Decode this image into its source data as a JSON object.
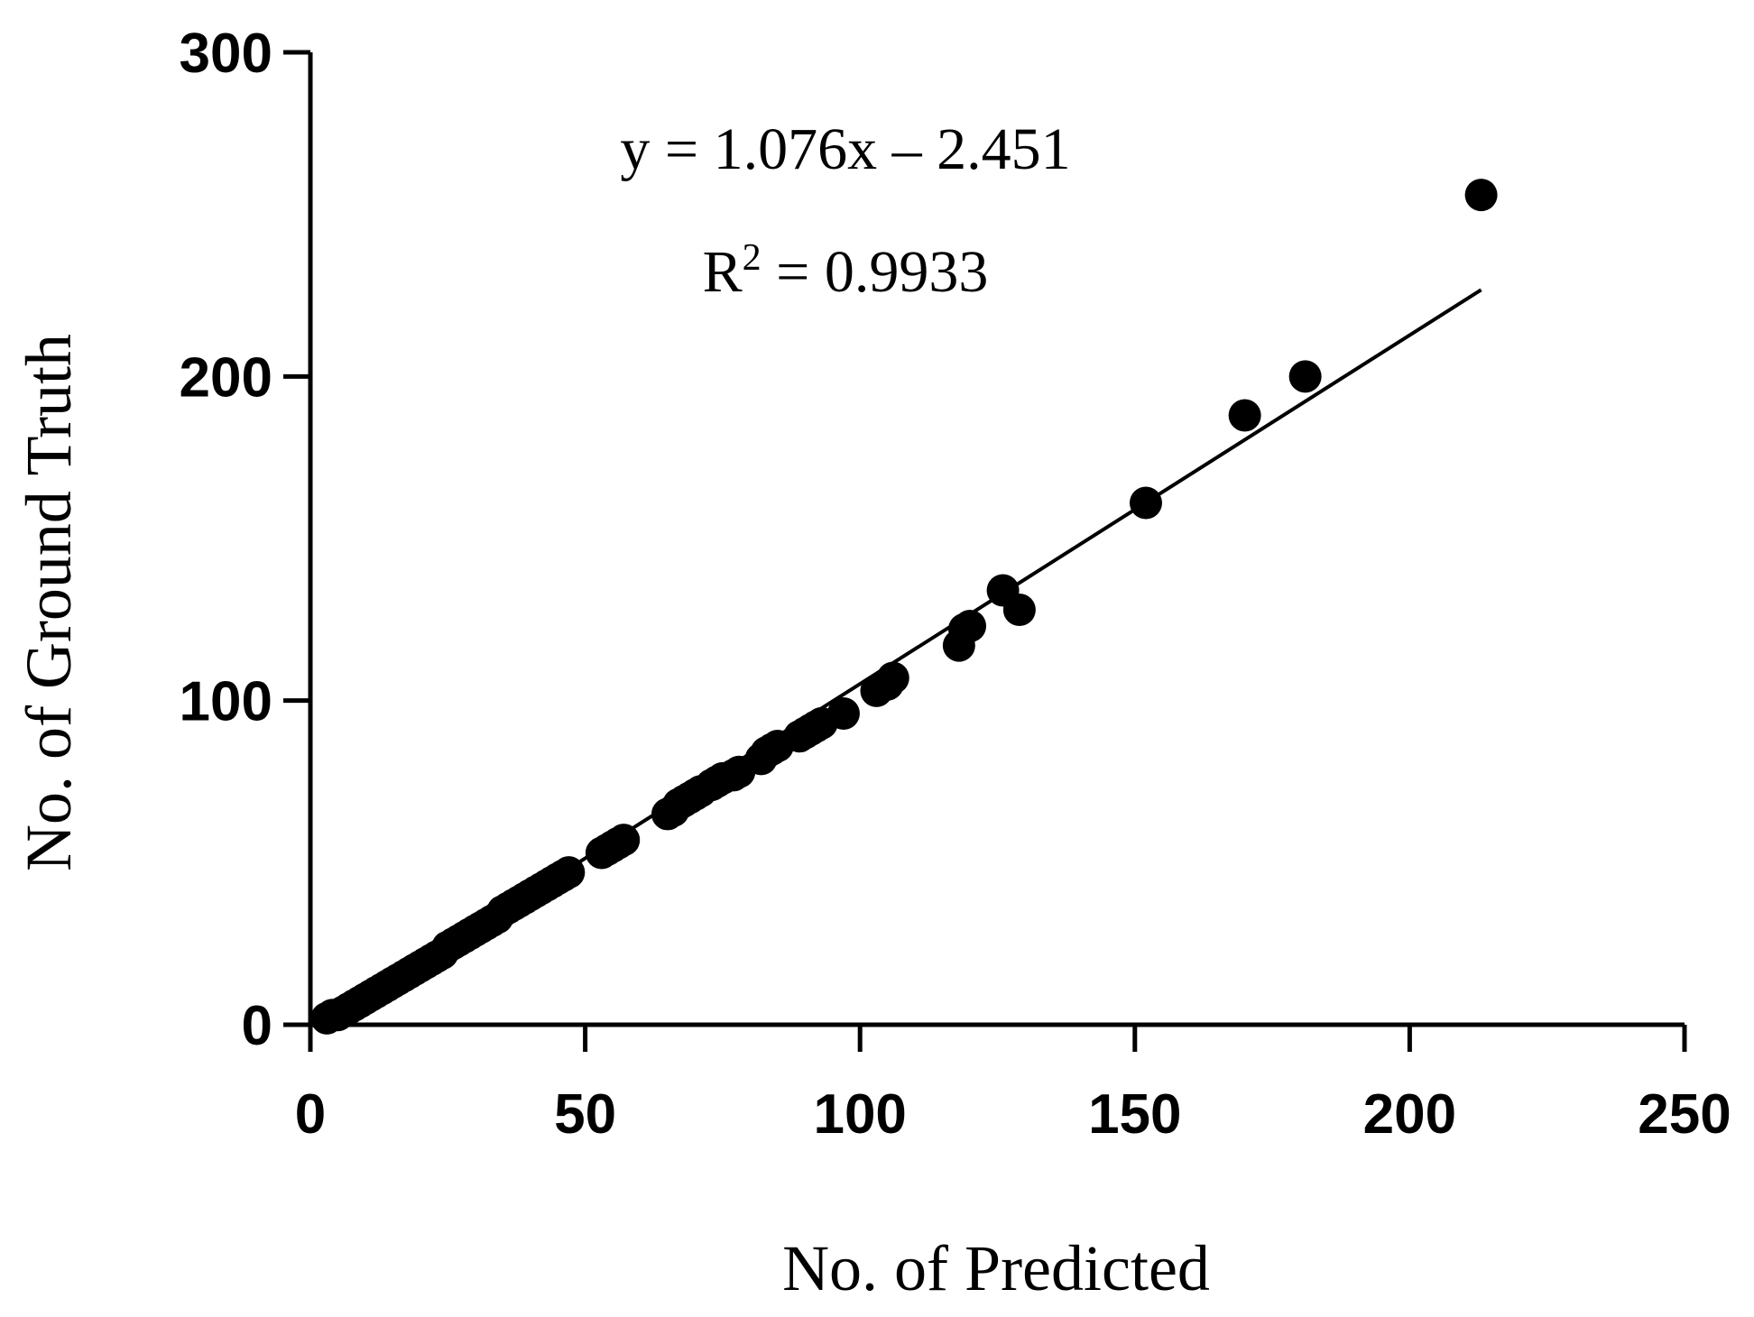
{
  "chart_data": {
    "type": "scatter",
    "xlabel": "No. of Predicted",
    "ylabel": "No. of Ground Truth",
    "xlim": [
      0,
      250
    ],
    "ylim": [
      0,
      300
    ],
    "xticks": [
      "0",
      "50",
      "100",
      "150",
      "200",
      "250"
    ],
    "yticks": [
      "0",
      "100",
      "200",
      "300"
    ],
    "grid": false,
    "equation_label": "y = 1.076x – 2.451",
    "r2_prefix": "R",
    "r2_sup": "2",
    "r2_value": " = 0.9933",
    "fit": {
      "slope": 1.076,
      "intercept": -2.451,
      "x_range": [
        3,
        213
      ]
    },
    "points": [
      [
        3,
        2
      ],
      [
        4,
        3
      ],
      [
        5,
        3
      ],
      [
        6,
        4
      ],
      [
        7,
        5
      ],
      [
        8,
        6
      ],
      [
        9,
        7
      ],
      [
        10,
        8
      ],
      [
        11,
        9
      ],
      [
        12,
        10
      ],
      [
        13,
        11
      ],
      [
        14,
        12
      ],
      [
        15,
        13
      ],
      [
        16,
        14
      ],
      [
        17,
        15
      ],
      [
        18,
        16
      ],
      [
        19,
        17
      ],
      [
        20,
        18
      ],
      [
        21,
        19
      ],
      [
        22,
        20
      ],
      [
        23,
        21
      ],
      [
        24,
        22
      ],
      [
        25,
        24
      ],
      [
        26,
        25
      ],
      [
        27,
        26
      ],
      [
        28,
        27
      ],
      [
        29,
        28
      ],
      [
        30,
        29
      ],
      [
        31,
        30
      ],
      [
        32,
        31
      ],
      [
        33,
        32
      ],
      [
        34,
        33
      ],
      [
        35,
        35
      ],
      [
        36,
        36
      ],
      [
        37,
        37
      ],
      [
        38,
        38
      ],
      [
        39,
        39
      ],
      [
        40,
        40
      ],
      [
        41,
        41
      ],
      [
        42,
        42
      ],
      [
        43,
        43
      ],
      [
        44,
        44
      ],
      [
        45,
        45
      ],
      [
        46,
        46
      ],
      [
        47,
        47
      ],
      [
        53,
        53
      ],
      [
        54,
        54
      ],
      [
        55,
        55
      ],
      [
        56,
        56
      ],
      [
        57,
        57
      ],
      [
        65,
        65
      ],
      [
        66,
        66
      ],
      [
        67,
        68
      ],
      [
        68,
        69
      ],
      [
        69,
        70
      ],
      [
        70,
        71
      ],
      [
        71,
        72
      ],
      [
        73,
        74
      ],
      [
        74,
        75
      ],
      [
        75,
        76
      ],
      [
        77,
        77
      ],
      [
        78,
        78
      ],
      [
        82,
        82
      ],
      [
        83,
        84
      ],
      [
        84,
        85
      ],
      [
        85,
        86
      ],
      [
        89,
        89
      ],
      [
        90,
        90
      ],
      [
        91,
        91
      ],
      [
        92,
        92
      ],
      [
        93,
        93
      ],
      [
        97,
        96
      ],
      [
        103,
        103
      ],
      [
        105,
        105
      ],
      [
        106,
        107
      ],
      [
        118,
        117
      ],
      [
        119,
        122
      ],
      [
        120,
        123
      ],
      [
        126,
        134
      ],
      [
        129,
        128
      ],
      [
        152,
        161
      ],
      [
        170,
        188
      ],
      [
        181,
        200
      ],
      [
        213,
        256
      ]
    ]
  }
}
